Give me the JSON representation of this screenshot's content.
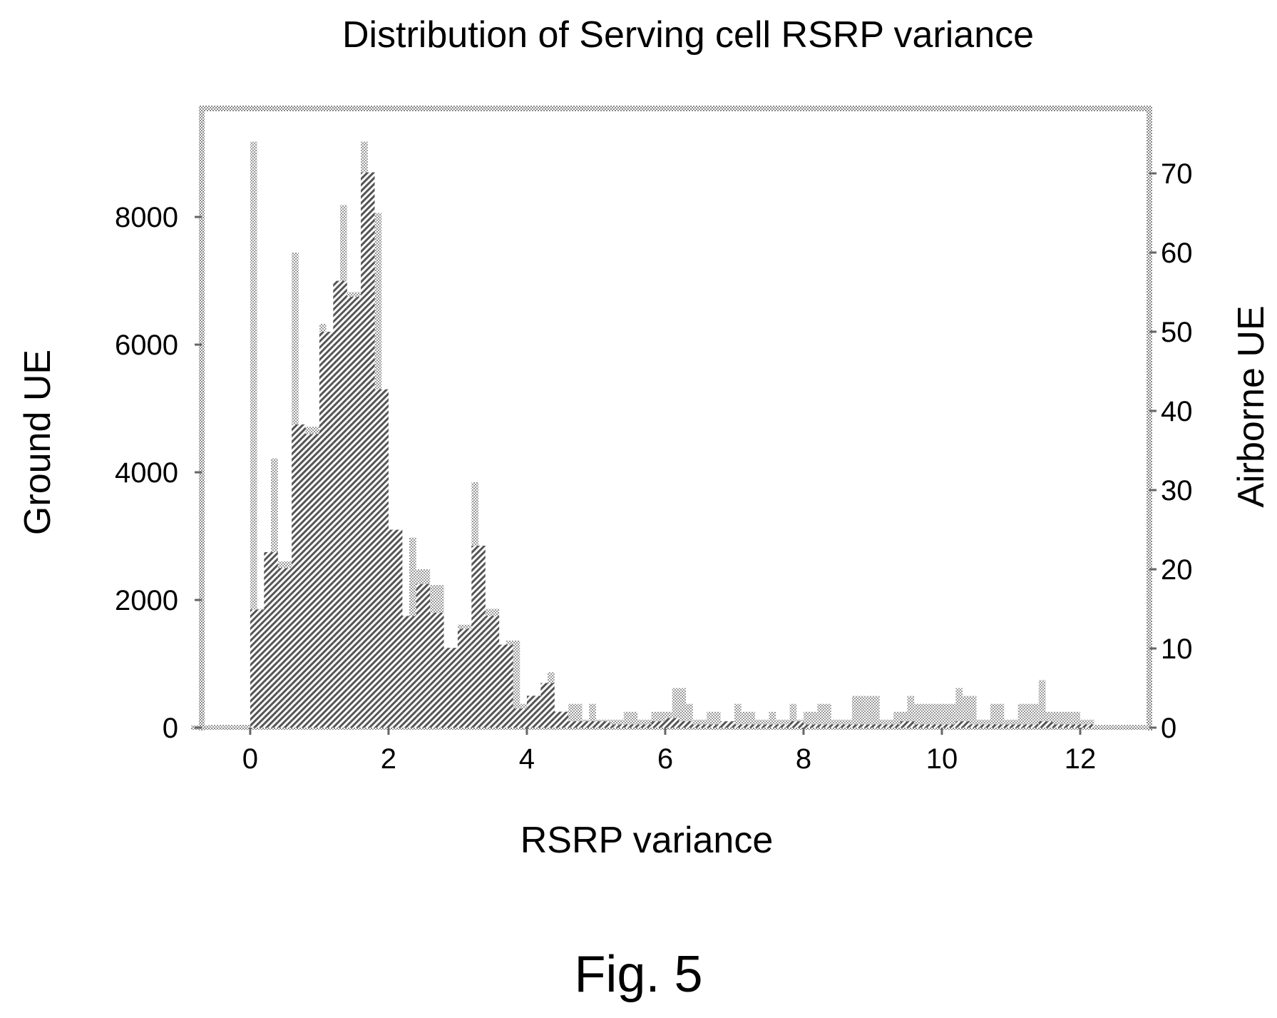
{
  "caption": "Fig. 5",
  "chart_data": {
    "type": "bar",
    "title": "Distribution of Serving cell RSRP variance",
    "xlabel": "RSRP variance",
    "ylabel": "Ground UE",
    "y2label": "Airborne UE",
    "xlim": [
      -0.7,
      13.0
    ],
    "ylim": [
      0,
      9700
    ],
    "y2lim": [
      0,
      78.2
    ],
    "xticks": [
      0,
      2,
      4,
      6,
      8,
      10,
      12
    ],
    "yticks": [
      0,
      2000,
      4000,
      6000,
      8000
    ],
    "y2ticks": [
      0,
      10,
      20,
      30,
      40,
      50,
      60,
      70
    ],
    "bin_width": 0.2,
    "series": [
      {
        "axis": "left",
        "bins": [
          [
            0.0,
            0.2,
            1850
          ],
          [
            0.2,
            0.4,
            2750
          ],
          [
            0.4,
            0.6,
            2500
          ],
          [
            0.6,
            0.8,
            4750
          ],
          [
            0.8,
            1.0,
            4600
          ],
          [
            1.0,
            1.2,
            6200
          ],
          [
            1.2,
            1.4,
            7000
          ],
          [
            1.4,
            1.6,
            6750
          ],
          [
            1.6,
            1.8,
            8700
          ],
          [
            1.8,
            2.0,
            5300
          ],
          [
            2.0,
            2.2,
            3100
          ],
          [
            2.2,
            2.4,
            1750
          ],
          [
            2.4,
            2.6,
            2250
          ],
          [
            2.6,
            2.8,
            1800
          ],
          [
            2.8,
            3.0,
            1250
          ],
          [
            3.0,
            3.2,
            1550
          ],
          [
            3.2,
            3.4,
            2850
          ],
          [
            3.4,
            3.6,
            1750
          ],
          [
            3.6,
            3.8,
            1300
          ],
          [
            3.8,
            4.0,
            300
          ],
          [
            4.0,
            4.2,
            500
          ],
          [
            4.2,
            4.4,
            700
          ],
          [
            4.4,
            4.6,
            250
          ],
          [
            4.6,
            4.8,
            100
          ],
          [
            4.8,
            5.0,
            100
          ],
          [
            5.0,
            5.2,
            100
          ],
          [
            5.2,
            5.4,
            50
          ],
          [
            5.4,
            5.6,
            50
          ],
          [
            5.6,
            5.8,
            50
          ],
          [
            5.8,
            6.0,
            100
          ],
          [
            6.0,
            6.2,
            150
          ],
          [
            6.2,
            6.4,
            100
          ],
          [
            6.4,
            6.6,
            50
          ],
          [
            6.6,
            6.8,
            50
          ],
          [
            6.8,
            7.0,
            100
          ],
          [
            7.0,
            7.2,
            50
          ],
          [
            7.2,
            7.4,
            50
          ],
          [
            7.4,
            7.6,
            50
          ],
          [
            7.6,
            7.8,
            50
          ],
          [
            7.8,
            8.0,
            100
          ],
          [
            8.0,
            8.2,
            50
          ],
          [
            8.2,
            8.4,
            50
          ],
          [
            8.4,
            8.6,
            50
          ],
          [
            8.6,
            8.8,
            50
          ],
          [
            8.8,
            9.0,
            50
          ],
          [
            9.0,
            9.2,
            50
          ],
          [
            9.2,
            9.4,
            50
          ],
          [
            9.4,
            9.6,
            100
          ],
          [
            9.6,
            9.8,
            50
          ],
          [
            9.8,
            10.0,
            50
          ],
          [
            10.0,
            10.2,
            50
          ],
          [
            10.2,
            10.4,
            100
          ],
          [
            10.4,
            10.6,
            50
          ],
          [
            10.6,
            10.8,
            50
          ],
          [
            10.8,
            11.0,
            50
          ],
          [
            11.0,
            11.2,
            50
          ],
          [
            11.2,
            11.4,
            50
          ],
          [
            11.4,
            11.6,
            100
          ],
          [
            11.6,
            11.8,
            50
          ],
          [
            11.8,
            12.0,
            50
          ],
          [
            12.0,
            12.2,
            50
          ],
          [
            12.2,
            12.4,
            0
          ]
        ]
      },
      {
        "axis": "right",
        "bins": [
          [
            -0.6,
            0.0,
            0
          ],
          [
            0.0,
            0.1,
            74
          ],
          [
            0.1,
            0.3,
            15
          ],
          [
            0.3,
            0.4,
            34
          ],
          [
            0.4,
            0.6,
            21
          ],
          [
            0.6,
            0.7,
            60
          ],
          [
            0.7,
            0.8,
            38
          ],
          [
            0.8,
            1.0,
            38
          ],
          [
            1.0,
            1.1,
            51
          ],
          [
            1.1,
            1.3,
            50
          ],
          [
            1.3,
            1.4,
            66
          ],
          [
            1.4,
            1.6,
            55
          ],
          [
            1.6,
            1.7,
            74
          ],
          [
            1.7,
            1.8,
            70
          ],
          [
            1.8,
            1.9,
            65
          ],
          [
            1.9,
            2.0,
            38
          ],
          [
            2.0,
            2.2,
            25
          ],
          [
            2.2,
            2.3,
            14
          ],
          [
            2.3,
            2.4,
            24
          ],
          [
            2.4,
            2.6,
            20
          ],
          [
            2.6,
            2.8,
            18
          ],
          [
            2.8,
            3.0,
            10
          ],
          [
            3.0,
            3.2,
            13
          ],
          [
            3.2,
            3.3,
            31
          ],
          [
            3.3,
            3.4,
            23
          ],
          [
            3.4,
            3.6,
            15
          ],
          [
            3.6,
            3.7,
            10
          ],
          [
            3.7,
            3.9,
            11
          ],
          [
            3.9,
            4.0,
            3
          ],
          [
            4.0,
            4.1,
            2
          ],
          [
            4.1,
            4.2,
            4
          ],
          [
            4.2,
            4.3,
            5
          ],
          [
            4.3,
            4.4,
            7
          ],
          [
            4.4,
            4.5,
            2
          ],
          [
            4.5,
            4.6,
            1
          ],
          [
            4.6,
            4.8,
            3
          ],
          [
            4.8,
            4.9,
            1
          ],
          [
            4.9,
            5.0,
            3
          ],
          [
            5.0,
            5.2,
            1
          ],
          [
            5.2,
            5.4,
            1
          ],
          [
            5.4,
            5.6,
            2
          ],
          [
            5.6,
            5.8,
            1
          ],
          [
            5.8,
            6.0,
            2
          ],
          [
            6.0,
            6.1,
            2
          ],
          [
            6.1,
            6.3,
            5
          ],
          [
            6.3,
            6.4,
            3
          ],
          [
            6.4,
            6.6,
            1
          ],
          [
            6.6,
            6.8,
            2
          ],
          [
            6.8,
            7.0,
            0
          ],
          [
            7.0,
            7.1,
            3
          ],
          [
            7.1,
            7.3,
            2
          ],
          [
            7.3,
            7.5,
            1
          ],
          [
            7.5,
            7.6,
            2
          ],
          [
            7.6,
            7.8,
            1
          ],
          [
            7.8,
            7.9,
            3
          ],
          [
            7.9,
            8.0,
            1
          ],
          [
            8.0,
            8.2,
            2
          ],
          [
            8.2,
            8.4,
            3
          ],
          [
            8.4,
            8.6,
            1
          ],
          [
            8.6,
            8.7,
            1
          ],
          [
            8.7,
            8.9,
            4
          ],
          [
            8.9,
            9.1,
            4
          ],
          [
            9.1,
            9.3,
            1
          ],
          [
            9.3,
            9.5,
            2
          ],
          [
            9.5,
            9.6,
            4
          ],
          [
            9.6,
            9.8,
            3
          ],
          [
            9.8,
            10.0,
            3
          ],
          [
            10.0,
            10.2,
            3
          ],
          [
            10.2,
            10.3,
            5
          ],
          [
            10.3,
            10.5,
            4
          ],
          [
            10.5,
            10.7,
            1
          ],
          [
            10.7,
            10.9,
            3
          ],
          [
            10.9,
            11.1,
            1
          ],
          [
            11.1,
            11.3,
            3
          ],
          [
            11.3,
            11.4,
            3
          ],
          [
            11.4,
            11.5,
            6
          ],
          [
            11.5,
            11.7,
            2
          ],
          [
            11.7,
            11.9,
            2
          ],
          [
            11.9,
            12.0,
            2
          ],
          [
            12.0,
            12.2,
            1
          ],
          [
            12.2,
            12.4,
            0
          ],
          [
            12.4,
            13.0,
            0
          ]
        ]
      }
    ]
  },
  "style": {
    "ground_pattern_color": "#555555",
    "airborne_pattern_color": "#aaaaaa",
    "frame_color": "#bbbbbb",
    "text_color": "#000000"
  }
}
